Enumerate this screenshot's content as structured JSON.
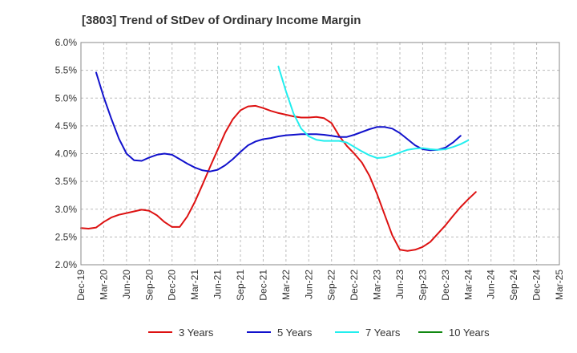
{
  "chart_data": {
    "type": "line",
    "title": "[3803]  Trend of StDev of Ordinary Income Margin",
    "xlabel": "",
    "ylabel": "",
    "ylim": [
      2.0,
      6.0
    ],
    "yticks": [
      2.0,
      2.5,
      3.0,
      3.5,
      4.0,
      4.5,
      5.0,
      5.5,
      6.0
    ],
    "ytick_labels": [
      "2.0%",
      "2.5%",
      "3.0%",
      "3.5%",
      "4.0%",
      "4.5%",
      "5.0%",
      "5.5%",
      "6.0%"
    ],
    "xtick_labels": [
      "Dec-19",
      "Mar-20",
      "Jun-20",
      "Sep-20",
      "Dec-20",
      "Mar-21",
      "Jun-21",
      "Sep-21",
      "Dec-21",
      "Mar-22",
      "Jun-22",
      "Sep-22",
      "Dec-22",
      "Mar-23",
      "Jun-23",
      "Sep-23",
      "Dec-23",
      "Mar-24",
      "Jun-24",
      "Sep-24",
      "Dec-24",
      "Mar-25"
    ],
    "grid": true,
    "legend_position": "bottom",
    "series": [
      {
        "name": "3 Years",
        "color": "#dd1111",
        "x_start": 0,
        "values": [
          2.66,
          2.65,
          2.67,
          2.77,
          2.85,
          2.9,
          2.93,
          2.96,
          2.99,
          2.97,
          2.89,
          2.77,
          2.68,
          2.68,
          2.87,
          3.13,
          3.44,
          3.76,
          4.07,
          4.38,
          4.62,
          4.78,
          4.85,
          4.86,
          4.82,
          4.77,
          4.73,
          4.7,
          4.67,
          4.65,
          4.65,
          4.66,
          4.64,
          4.55,
          4.32,
          4.14,
          4.0,
          3.84,
          3.6,
          3.27,
          2.9,
          2.53,
          2.27,
          2.25,
          2.27,
          2.32,
          2.41,
          2.56,
          2.71,
          2.88,
          3.04,
          3.18,
          3.31
        ]
      },
      {
        "name": "5 Years",
        "color": "#1111cc",
        "x_start": 2,
        "values": [
          5.46,
          5.02,
          4.63,
          4.27,
          4.0,
          3.88,
          3.87,
          3.93,
          3.98,
          4.0,
          3.98,
          3.9,
          3.82,
          3.75,
          3.7,
          3.68,
          3.71,
          3.79,
          3.9,
          4.03,
          4.15,
          4.22,
          4.26,
          4.28,
          4.31,
          4.33,
          4.34,
          4.35,
          4.35,
          4.35,
          4.34,
          4.32,
          4.3,
          4.3,
          4.34,
          4.39,
          4.44,
          4.48,
          4.48,
          4.45,
          4.37,
          4.26,
          4.15,
          4.08,
          4.06,
          4.07,
          4.11,
          4.2,
          4.32
        ]
      },
      {
        "name": "7 Years",
        "color": "#22eeee",
        "x_start": 26,
        "values": [
          5.57,
          5.12,
          4.72,
          4.45,
          4.31,
          4.25,
          4.23,
          4.23,
          4.23,
          4.2,
          4.12,
          4.04,
          3.97,
          3.92,
          3.93,
          3.97,
          4.02,
          4.07,
          4.09,
          4.1,
          4.08,
          4.07,
          4.08,
          4.12,
          4.17,
          4.24
        ]
      },
      {
        "name": "10 Years",
        "color": "#118811",
        "x_start": 0,
        "values": []
      }
    ]
  }
}
